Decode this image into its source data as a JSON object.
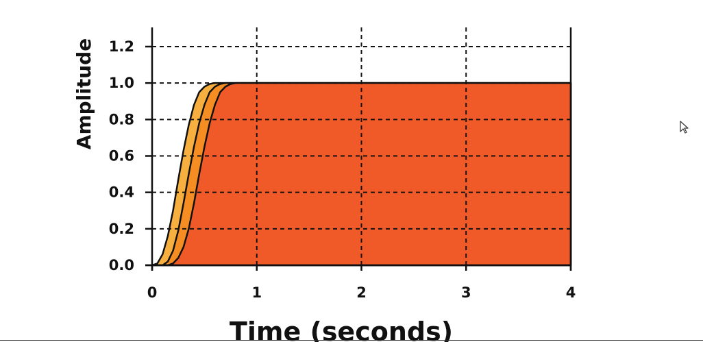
{
  "chart_data": {
    "type": "area",
    "xlabel": "Time (seconds)",
    "ylabel": "Amplitude",
    "xlim": [
      0,
      4
    ],
    "ylim": [
      0,
      1.3
    ],
    "xticks": [
      "0",
      "1",
      "2",
      "3",
      "4"
    ],
    "yticks": [
      "0.0",
      "0.2",
      "0.4",
      "0.6",
      "0.8",
      "1.0",
      "1.2"
    ],
    "grid": true,
    "series": [
      {
        "color": "#f7b03f",
        "x": [
          0,
          0.05,
          0.1,
          0.15,
          0.2,
          0.25,
          0.3,
          0.35,
          0.4,
          0.45,
          0.5,
          0.55,
          0.6,
          0.65,
          4
        ],
        "y": [
          0,
          0.01,
          0.06,
          0.16,
          0.3,
          0.47,
          0.63,
          0.77,
          0.88,
          0.95,
          0.98,
          0.995,
          1.0,
          1.0,
          1.0
        ]
      },
      {
        "color": "#f58d22",
        "x": [
          0,
          0.1,
          0.15,
          0.2,
          0.25,
          0.3,
          0.35,
          0.4,
          0.45,
          0.5,
          0.55,
          0.6,
          0.65,
          0.7,
          0.75,
          4
        ],
        "y": [
          0,
          0.0,
          0.02,
          0.08,
          0.19,
          0.34,
          0.5,
          0.65,
          0.78,
          0.88,
          0.95,
          0.98,
          0.995,
          1.0,
          1.0,
          1.0
        ]
      },
      {
        "color": "#f05a28",
        "x": [
          0,
          0.15,
          0.2,
          0.25,
          0.3,
          0.35,
          0.4,
          0.45,
          0.5,
          0.55,
          0.6,
          0.65,
          0.7,
          0.75,
          0.8,
          0.85,
          4
        ],
        "y": [
          0,
          0.0,
          0.01,
          0.04,
          0.1,
          0.2,
          0.34,
          0.5,
          0.65,
          0.78,
          0.88,
          0.95,
          0.98,
          0.995,
          1.0,
          1.0,
          1.0
        ]
      }
    ]
  }
}
